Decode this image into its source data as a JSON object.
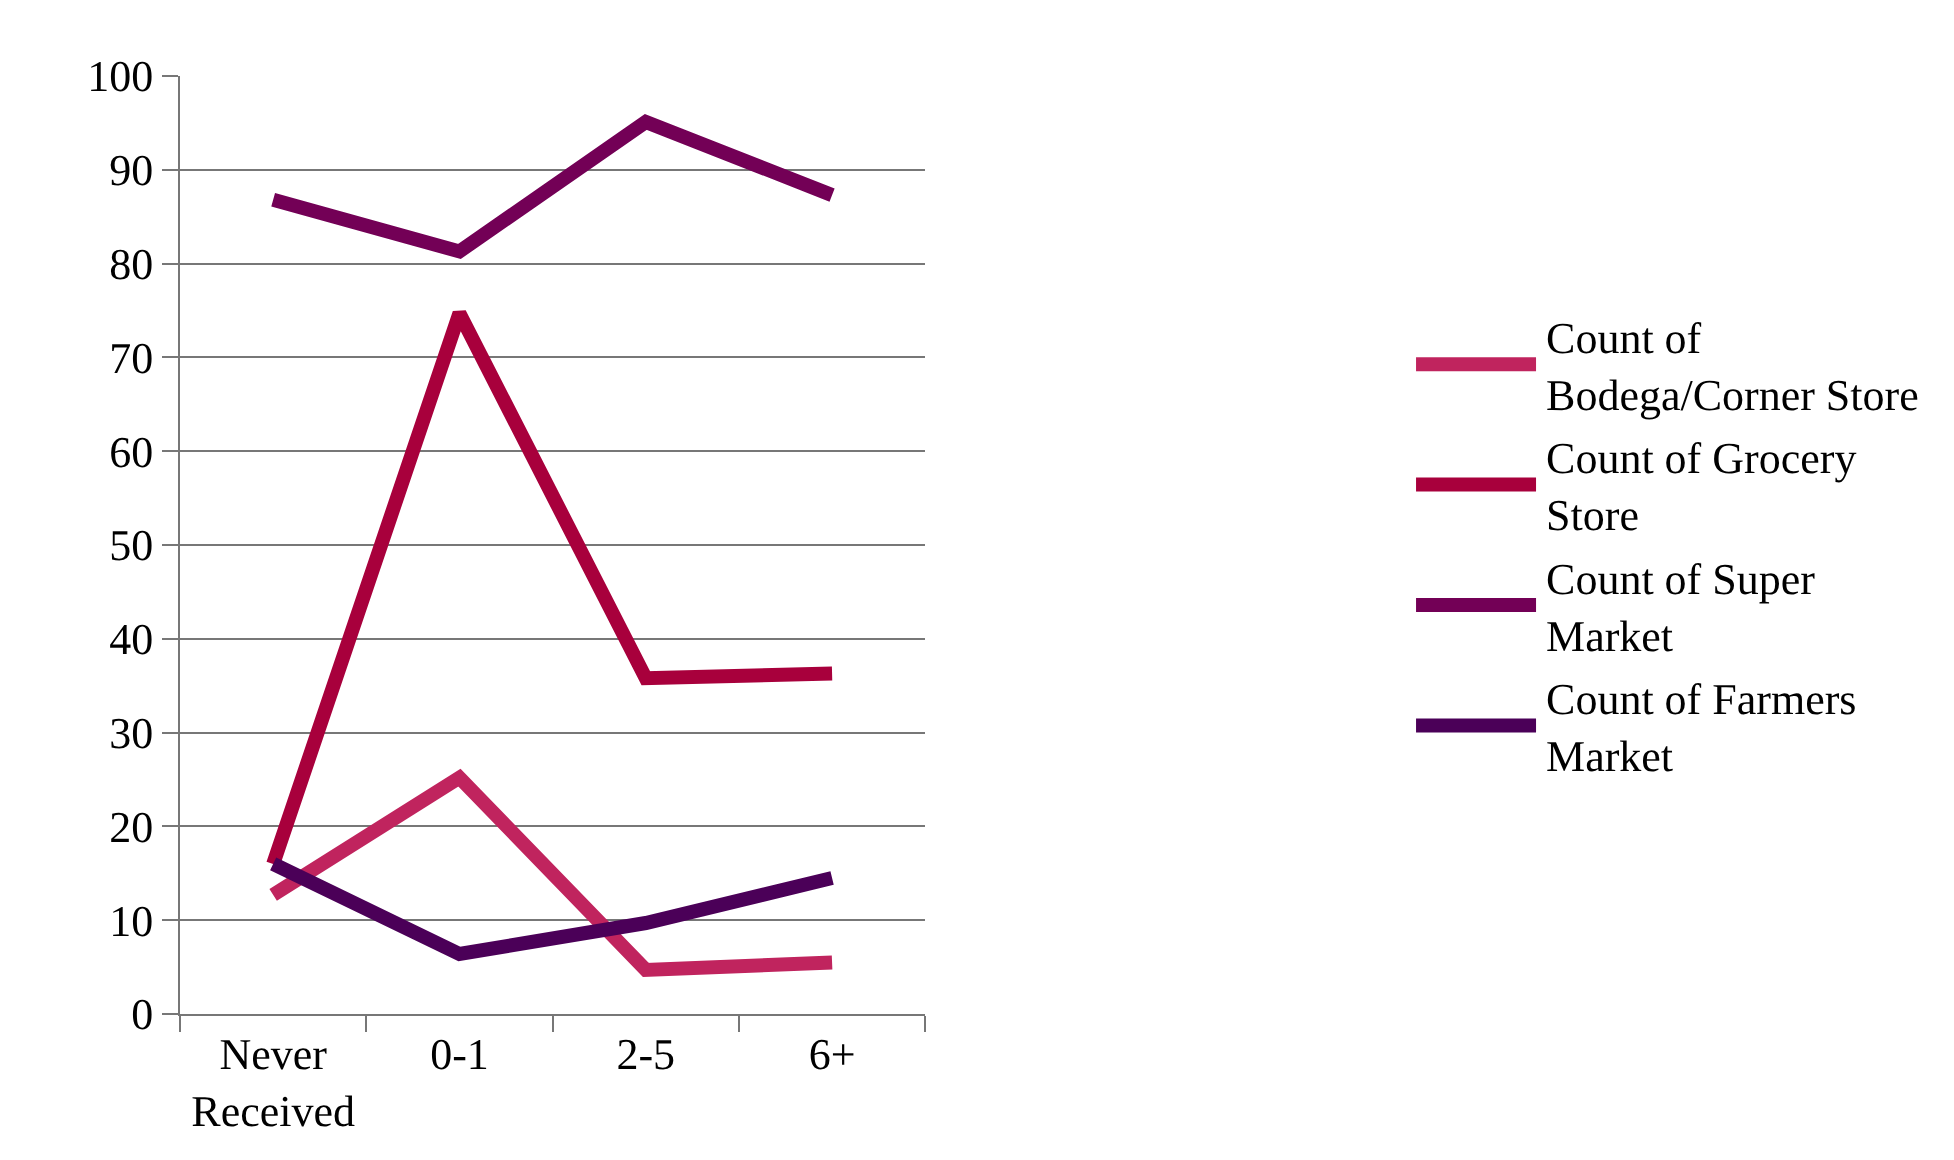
{
  "chart_data": {
    "type": "line",
    "categories": [
      "Never Received",
      "0-1",
      "2-5",
      "6+"
    ],
    "series": [
      {
        "name": "Count of Bodega/Corner Store",
        "color": "#c0245e",
        "values": [
          12.7,
          25.2,
          4.7,
          5.5
        ]
      },
      {
        "name": "Count of Grocery Store",
        "color": "#a8003c",
        "values": [
          16,
          74.7,
          35.8,
          36.3
        ]
      },
      {
        "name": "Count of Super Market",
        "color": "#730056",
        "values": [
          86.8,
          81.3,
          95.1,
          87.3
        ]
      },
      {
        "name": "Count of Farmers Market",
        "color": "#4b0058",
        "values": [
          16,
          6.4,
          9.7,
          14.5
        ]
      }
    ],
    "ylim": [
      0,
      100
    ],
    "yticks": [
      0,
      10,
      20,
      30,
      40,
      50,
      60,
      70,
      80,
      90,
      100
    ],
    "grid": "y",
    "legend": "right",
    "marker": "none",
    "line_style": "solid"
  }
}
